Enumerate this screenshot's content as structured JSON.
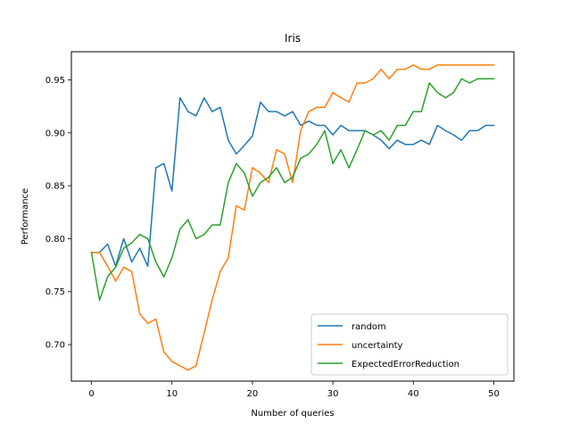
{
  "chart_data": {
    "type": "line",
    "title": "Iris",
    "xlabel": "Number of queries",
    "ylabel": "Performance",
    "xlim": [
      -2.5,
      52.5
    ],
    "ylim": [
      0.6655,
      0.9765
    ],
    "xticks": [
      0,
      10,
      20,
      30,
      40,
      50
    ],
    "yticks": [
      0.7,
      0.75,
      0.8,
      0.85,
      0.9,
      0.95
    ],
    "xtick_labels": [
      "0",
      "10",
      "20",
      "30",
      "40",
      "50"
    ],
    "ytick_labels": [
      "0.70",
      "0.75",
      "0.80",
      "0.85",
      "0.90",
      "0.95"
    ],
    "grid": false,
    "legend_position": "lower-right",
    "x": [
      0,
      1,
      2,
      3,
      4,
      5,
      6,
      7,
      8,
      9,
      10,
      11,
      12,
      13,
      14,
      15,
      16,
      17,
      18,
      19,
      20,
      21,
      22,
      23,
      24,
      25,
      26,
      27,
      28,
      29,
      30,
      31,
      32,
      33,
      34,
      35,
      36,
      37,
      38,
      39,
      40,
      41,
      42,
      43,
      44,
      45,
      46,
      47,
      48,
      49,
      50
    ],
    "series": [
      {
        "name": "random",
        "color": "#1f77b4",
        "values": [
          0.787,
          0.787,
          0.795,
          0.774,
          0.8,
          0.778,
          0.791,
          0.774,
          0.867,
          0.871,
          0.845,
          0.933,
          0.92,
          0.916,
          0.933,
          0.92,
          0.924,
          0.893,
          0.88,
          0.888,
          0.897,
          0.929,
          0.92,
          0.92,
          0.916,
          0.92,
          0.907,
          0.911,
          0.907,
          0.907,
          0.898,
          0.907,
          0.902,
          0.902,
          0.902,
          0.898,
          0.893,
          0.885,
          0.893,
          0.889,
          0.889,
          0.893,
          0.889,
          0.907,
          0.902,
          0.898,
          0.893,
          0.902,
          0.902,
          0.907,
          0.907
        ]
      },
      {
        "name": "uncertainty",
        "color": "#ff7f0e",
        "values": [
          0.787,
          0.787,
          0.774,
          0.76,
          0.773,
          0.769,
          0.729,
          0.72,
          0.724,
          0.693,
          0.684,
          0.68,
          0.676,
          0.68,
          0.711,
          0.742,
          0.769,
          0.782,
          0.831,
          0.827,
          0.867,
          0.862,
          0.853,
          0.884,
          0.88,
          0.853,
          0.902,
          0.92,
          0.924,
          0.924,
          0.938,
          0.933,
          0.929,
          0.947,
          0.947,
          0.951,
          0.96,
          0.951,
          0.96,
          0.96,
          0.964,
          0.96,
          0.96,
          0.964,
          0.964,
          0.964,
          0.964,
          0.964,
          0.964,
          0.964,
          0.964
        ]
      },
      {
        "name": "ExpectedErrorReduction",
        "color": "#2ca02c",
        "values": [
          0.787,
          0.742,
          0.764,
          0.773,
          0.791,
          0.796,
          0.804,
          0.8,
          0.778,
          0.764,
          0.782,
          0.809,
          0.818,
          0.8,
          0.804,
          0.813,
          0.813,
          0.853,
          0.871,
          0.862,
          0.84,
          0.853,
          0.858,
          0.867,
          0.853,
          0.858,
          0.876,
          0.88,
          0.889,
          0.902,
          0.871,
          0.884,
          0.867,
          0.884,
          0.902,
          0.898,
          0.902,
          0.893,
          0.907,
          0.907,
          0.92,
          0.92,
          0.947,
          0.938,
          0.933,
          0.938,
          0.951,
          0.947,
          0.951,
          0.951,
          0.951
        ]
      }
    ]
  }
}
